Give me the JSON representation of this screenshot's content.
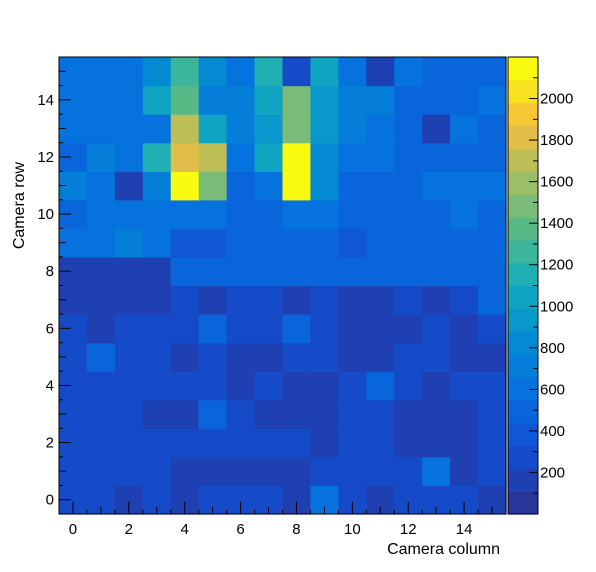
{
  "chart_data": {
    "type": "heatmap",
    "title": "",
    "xlabel": "Camera column",
    "ylabel": "Camera row",
    "xlim": [
      -0.5,
      15.5
    ],
    "ylim": [
      -0.5,
      15.5
    ],
    "x_ticks": [
      0,
      2,
      4,
      6,
      8,
      10,
      12,
      14
    ],
    "y_ticks": [
      0,
      2,
      4,
      6,
      8,
      10,
      12,
      14
    ],
    "colorbar": {
      "min": 0,
      "max": 2200,
      "ticks": [
        200,
        400,
        600,
        800,
        1000,
        1200,
        1400,
        1600,
        1800,
        2000
      ],
      "levels": 20
    },
    "grid": false,
    "rows": [
      {
        "row": 0,
        "values": [
          320,
          320,
          150,
          320,
          150,
          320,
          320,
          320,
          150,
          550,
          320,
          150,
          320,
          320,
          320,
          150
        ]
      },
      {
        "row": 1,
        "values": [
          320,
          320,
          320,
          320,
          150,
          150,
          150,
          150,
          150,
          320,
          320,
          320,
          320,
          550,
          150,
          320
        ]
      },
      {
        "row": 2,
        "values": [
          320,
          320,
          320,
          320,
          320,
          320,
          320,
          320,
          320,
          150,
          320,
          320,
          150,
          150,
          150,
          320
        ]
      },
      {
        "row": 3,
        "values": [
          320,
          320,
          320,
          150,
          150,
          500,
          320,
          150,
          150,
          150,
          320,
          320,
          150,
          150,
          150,
          320
        ]
      },
      {
        "row": 4,
        "values": [
          320,
          320,
          320,
          320,
          320,
          320,
          150,
          320,
          150,
          150,
          320,
          500,
          320,
          150,
          320,
          320
        ]
      },
      {
        "row": 5,
        "values": [
          320,
          500,
          320,
          320,
          150,
          320,
          150,
          150,
          320,
          320,
          150,
          150,
          320,
          320,
          150,
          150
        ]
      },
      {
        "row": 6,
        "values": [
          320,
          150,
          320,
          320,
          320,
          500,
          320,
          320,
          500,
          320,
          150,
          150,
          150,
          320,
          150,
          320
        ]
      },
      {
        "row": 7,
        "values": [
          150,
          150,
          150,
          150,
          320,
          150,
          320,
          320,
          150,
          320,
          150,
          150,
          320,
          150,
          320,
          500
        ]
      },
      {
        "row": 8,
        "values": [
          150,
          150,
          150,
          150,
          450,
          450,
          450,
          500,
          450,
          450,
          450,
          450,
          450,
          450,
          450,
          450
        ]
      },
      {
        "row": 9,
        "values": [
          600,
          600,
          700,
          600,
          350,
          350,
          450,
          520,
          450,
          450,
          350,
          450,
          450,
          450,
          450,
          450
        ]
      },
      {
        "row": 10,
        "values": [
          450,
          600,
          600,
          600,
          650,
          600,
          450,
          450,
          650,
          650,
          450,
          450,
          450,
          450,
          550,
          450
        ]
      },
      {
        "row": 11,
        "values": [
          750,
          600,
          150,
          750,
          2150,
          1450,
          450,
          650,
          2100,
          800,
          450,
          450,
          450,
          550,
          550,
          550
        ]
      },
      {
        "row": 12,
        "values": [
          450,
          750,
          600,
          1100,
          1850,
          1650,
          650,
          1050,
          2200,
          850,
          650,
          650,
          450,
          450,
          450,
          450
        ]
      },
      {
        "row": 13,
        "values": [
          600,
          600,
          600,
          600,
          1650,
          1000,
          750,
          900,
          1500,
          950,
          750,
          650,
          450,
          150,
          550,
          450
        ]
      },
      {
        "row": 14,
        "values": [
          550,
          550,
          650,
          1050,
          1400,
          750,
          750,
          1050,
          1450,
          900,
          750,
          750,
          450,
          450,
          450,
          550
        ]
      },
      {
        "row": 15,
        "values": [
          600,
          600,
          600,
          800,
          1250,
          850,
          650,
          1100,
          250,
          1050,
          650,
          150,
          550,
          450,
          450,
          450
        ]
      }
    ]
  }
}
